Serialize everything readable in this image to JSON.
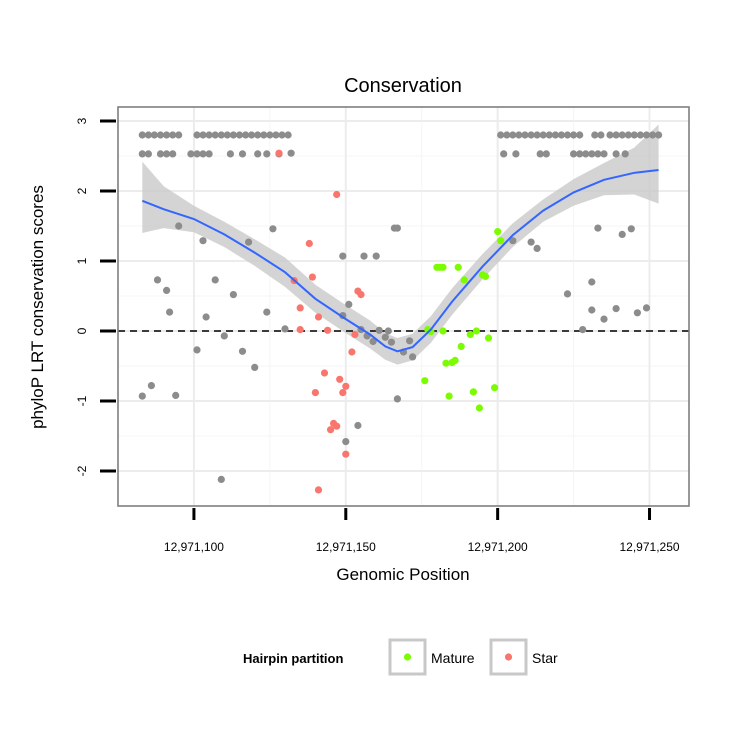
{
  "chart_data": {
    "type": "scatter",
    "title": "Conservation",
    "xlabel": "Genomic Position",
    "ylabel": "phyloP LRT conservation scores",
    "xlim": [
      12971075,
      12971263
    ],
    "ylim": [
      -2.5,
      3.2
    ],
    "xticks": [
      12971100,
      12971150,
      12971200,
      12971250
    ],
    "xtick_labels": [
      "12,971,100",
      "12,971,150",
      "12,971,200",
      "12,971,250"
    ],
    "yticks": [
      -2,
      -1,
      0,
      1,
      2,
      3
    ],
    "ytick_labels": [
      "-2",
      "-1",
      "0",
      "1",
      "2",
      "3"
    ],
    "reference_line": {
      "y": 0,
      "style": "dashed"
    },
    "grid": true,
    "legend": {
      "title": "Hairpin partition",
      "position": "bottom",
      "entries": [
        {
          "label": "Mature",
          "color": "#7CFC00"
        },
        {
          "label": "Star",
          "color": "#F8766D"
        }
      ]
    },
    "colors": {
      "other": "#8C8C8C",
      "Mature": "#7CFC00",
      "Star": "#F8766D",
      "smooth": "#3366FF",
      "band": "#C8C8C8"
    },
    "series": [
      {
        "name": "Other",
        "points": [
          [
            12971083,
            2.8
          ],
          [
            12971085,
            2.8
          ],
          [
            12971087,
            2.8
          ],
          [
            12971089,
            2.8
          ],
          [
            12971091,
            2.8
          ],
          [
            12971093,
            2.8
          ],
          [
            12971095,
            2.8
          ],
          [
            12971083,
            2.53
          ],
          [
            12971085,
            2.53
          ],
          [
            12971089,
            2.53
          ],
          [
            12971091,
            2.53
          ],
          [
            12971093,
            2.53
          ],
          [
            12971101,
            2.8
          ],
          [
            12971103,
            2.8
          ],
          [
            12971105,
            2.8
          ],
          [
            12971107,
            2.8
          ],
          [
            12971109,
            2.8
          ],
          [
            12971111,
            2.8
          ],
          [
            12971113,
            2.8
          ],
          [
            12971115,
            2.8
          ],
          [
            12971117,
            2.8
          ],
          [
            12971099,
            2.53
          ],
          [
            12971101,
            2.53
          ],
          [
            12971103,
            2.53
          ],
          [
            12971105,
            2.53
          ],
          [
            12971112,
            2.53
          ],
          [
            12971116,
            2.53
          ],
          [
            12971119,
            2.8
          ],
          [
            12971121,
            2.8
          ],
          [
            12971123,
            2.8
          ],
          [
            12971125,
            2.8
          ],
          [
            12971127,
            2.8
          ],
          [
            12971129,
            2.8
          ],
          [
            12971131,
            2.8
          ],
          [
            12971121,
            2.53
          ],
          [
            12971124,
            2.53
          ],
          [
            12971128,
            2.53
          ],
          [
            12971201,
            2.8
          ],
          [
            12971203,
            2.8
          ],
          [
            12971205,
            2.8
          ],
          [
            12971207,
            2.8
          ],
          [
            12971209,
            2.8
          ],
          [
            12971211,
            2.8
          ],
          [
            12971213,
            2.8
          ],
          [
            12971215,
            2.8
          ],
          [
            12971217,
            2.8
          ],
          [
            12971219,
            2.8
          ],
          [
            12971221,
            2.8
          ],
          [
            12971223,
            2.8
          ],
          [
            12971225,
            2.8
          ],
          [
            12971227,
            2.8
          ],
          [
            12971202,
            2.53
          ],
          [
            12971206,
            2.53
          ],
          [
            12971214,
            2.53
          ],
          [
            12971216,
            2.53
          ],
          [
            12971225,
            2.53
          ],
          [
            12971227,
            2.53
          ],
          [
            12971229,
            2.53
          ],
          [
            12971231,
            2.53
          ],
          [
            12971233,
            2.53
          ],
          [
            12971235,
            2.53
          ],
          [
            12971239,
            2.53
          ],
          [
            12971242,
            2.53
          ],
          [
            12971232,
            2.8
          ],
          [
            12971234,
            2.8
          ],
          [
            12971237,
            2.8
          ],
          [
            12971239,
            2.8
          ],
          [
            12971241,
            2.8
          ],
          [
            12971243,
            2.8
          ],
          [
            12971245,
            2.8
          ],
          [
            12971247,
            2.8
          ],
          [
            12971249,
            2.8
          ],
          [
            12971251,
            2.8
          ],
          [
            12971253,
            2.8
          ],
          [
            12971083,
            -0.93
          ],
          [
            12971086,
            -0.78
          ],
          [
            12971088,
            0.73
          ],
          [
            12971091,
            0.58
          ],
          [
            12971092,
            0.27
          ],
          [
            12971094,
            -0.92
          ],
          [
            12971095,
            1.5
          ],
          [
            12971101,
            -0.27
          ],
          [
            12971103,
            1.29
          ],
          [
            12971104,
            0.2
          ],
          [
            12971107,
            0.73
          ],
          [
            12971109,
            -2.12
          ],
          [
            12971110,
            -0.07
          ],
          [
            12971113,
            0.52
          ],
          [
            12971116,
            -0.29
          ],
          [
            12971118,
            1.27
          ],
          [
            12971120,
            -0.52
          ],
          [
            12971124,
            0.27
          ],
          [
            12971126,
            1.46
          ],
          [
            12971130,
            0.03
          ],
          [
            12971132,
            2.54
          ],
          [
            12971149,
            1.07
          ],
          [
            12971149,
            0.22
          ],
          [
            12971150,
            -1.58
          ],
          [
            12971151,
            0.38
          ],
          [
            12971154,
            -1.35
          ],
          [
            12971155,
            0.02
          ],
          [
            12971156,
            1.07
          ],
          [
            12971157,
            -0.07
          ],
          [
            12971159,
            -0.15
          ],
          [
            12971160,
            1.07
          ],
          [
            12971161,
            0.01
          ],
          [
            12971163,
            -0.09
          ],
          [
            12971164,
            0.0
          ],
          [
            12971165,
            -0.16
          ],
          [
            12971166,
            1.47
          ],
          [
            12971167,
            1.47
          ],
          [
            12971167,
            -0.97
          ],
          [
            12971169,
            -0.3
          ],
          [
            12971171,
            -0.14
          ],
          [
            12971172,
            -0.37
          ],
          [
            12971205,
            1.29
          ],
          [
            12971211,
            1.27
          ],
          [
            12971213,
            1.18
          ],
          [
            12971223,
            0.53
          ],
          [
            12971228,
            0.02
          ],
          [
            12971231,
            0.3
          ],
          [
            12971231,
            0.7
          ],
          [
            12971233,
            1.47
          ],
          [
            12971235,
            0.17
          ],
          [
            12971239,
            0.32
          ],
          [
            12971241,
            1.38
          ],
          [
            12971244,
            1.46
          ],
          [
            12971246,
            0.26
          ],
          [
            12971249,
            0.33
          ]
        ]
      },
      {
        "name": "Mature",
        "points": [
          [
            12971176,
            -0.71
          ],
          [
            12971177,
            0.02
          ],
          [
            12971178,
            -0.01
          ],
          [
            12971180,
            0.91
          ],
          [
            12971181,
            0.91
          ],
          [
            12971182,
            0.91
          ],
          [
            12971182,
            0.0
          ],
          [
            12971183,
            -0.46
          ],
          [
            12971184,
            -0.93
          ],
          [
            12971185,
            -0.45
          ],
          [
            12971186,
            -0.42
          ],
          [
            12971187,
            0.91
          ],
          [
            12971188,
            -0.22
          ],
          [
            12971189,
            0.73
          ],
          [
            12971191,
            -0.05
          ],
          [
            12971192,
            -0.87
          ],
          [
            12971193,
            0.0
          ],
          [
            12971194,
            -1.1
          ],
          [
            12971195,
            0.8
          ],
          [
            12971196,
            0.78
          ],
          [
            12971197,
            -0.1
          ],
          [
            12971199,
            -0.81
          ],
          [
            12971200,
            1.42
          ],
          [
            12971201,
            1.29
          ]
        ]
      },
      {
        "name": "Star",
        "points": [
          [
            12971128,
            2.54
          ],
          [
            12971133,
            0.72
          ],
          [
            12971135,
            0.02
          ],
          [
            12971135,
            0.33
          ],
          [
            12971138,
            1.25
          ],
          [
            12971139,
            0.77
          ],
          [
            12971140,
            -0.88
          ],
          [
            12971141,
            0.2
          ],
          [
            12971141,
            -2.27
          ],
          [
            12971143,
            -0.6
          ],
          [
            12971144,
            0.01
          ],
          [
            12971145,
            -1.41
          ],
          [
            12971146,
            -1.32
          ],
          [
            12971147,
            -1.36
          ],
          [
            12971147,
            1.95
          ],
          [
            12971148,
            -0.69
          ],
          [
            12971149,
            -0.88
          ],
          [
            12971150,
            -0.79
          ],
          [
            12971150,
            -1.76
          ],
          [
            12971152,
            -0.3
          ],
          [
            12971153,
            -0.05
          ],
          [
            12971154,
            0.57
          ],
          [
            12971155,
            0.52
          ]
        ]
      }
    ],
    "smooth": {
      "method": "loess",
      "x": [
        12971083,
        12971090,
        12971100,
        12971110,
        12971120,
        12971130,
        12971140,
        12971150,
        12971158,
        12971163,
        12971167,
        12971172,
        12971178,
        12971185,
        12971195,
        12971205,
        12971215,
        12971225,
        12971235,
        12971245,
        12971253
      ],
      "y": [
        1.86,
        1.74,
        1.6,
        1.38,
        1.12,
        0.84,
        0.46,
        0.17,
        -0.05,
        -0.22,
        -0.29,
        -0.23,
        0.02,
        0.42,
        0.92,
        1.37,
        1.72,
        1.98,
        2.16,
        2.26,
        2.3
      ],
      "lower": [
        1.4,
        1.47,
        1.41,
        1.2,
        0.93,
        0.63,
        0.26,
        -0.03,
        -0.25,
        -0.41,
        -0.48,
        -0.42,
        -0.17,
        0.23,
        0.74,
        1.2,
        1.56,
        1.79,
        1.94,
        1.95,
        1.82
      ],
      "upper": [
        2.42,
        2.07,
        1.79,
        1.56,
        1.31,
        1.05,
        0.66,
        0.37,
        0.15,
        -0.03,
        -0.1,
        -0.04,
        0.21,
        0.61,
        1.1,
        1.54,
        1.88,
        2.17,
        2.4,
        2.62,
        2.95
      ]
    }
  }
}
